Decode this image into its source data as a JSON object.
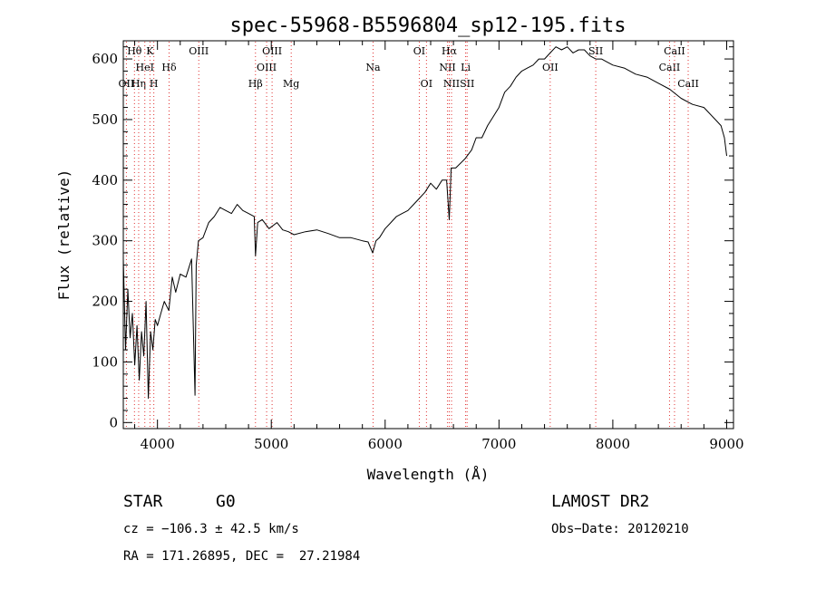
{
  "chart_data": {
    "type": "line",
    "title": "spec-55968-B5596804_sp12-195.fits",
    "xlabel": "Wavelength (Å)",
    "ylabel": "Flux (relative)",
    "xlim": [
      3700,
      9060
    ],
    "ylim": [
      -10,
      630
    ],
    "xticks": [
      4000,
      5000,
      6000,
      7000,
      8000,
      9000
    ],
    "yticks": [
      0,
      100,
      200,
      300,
      400,
      500,
      600
    ],
    "grid": false,
    "series": [
      {
        "color": "#000000",
        "x": [
          3700,
          3720,
          3740,
          3760,
          3780,
          3800,
          3820,
          3840,
          3860,
          3880,
          3900,
          3920,
          3940,
          3960,
          3980,
          4000,
          4030,
          4060,
          4100,
          4130,
          4160,
          4200,
          4250,
          4300,
          4330,
          4340,
          4360,
          4400,
          4450,
          4500,
          4550,
          4600,
          4650,
          4700,
          4750,
          4800,
          4850,
          4861,
          4880,
          4920,
          4980,
          5050,
          5100,
          5150,
          5200,
          5300,
          5400,
          5500,
          5600,
          5700,
          5800,
          5850,
          5890,
          5920,
          5950,
          6000,
          6050,
          6100,
          6150,
          6200,
          6250,
          6300,
          6350,
          6400,
          6450,
          6500,
          6540,
          6563,
          6580,
          6620,
          6700,
          6760,
          6800,
          6850,
          6900,
          6950,
          7000,
          7050,
          7100,
          7150,
          7200,
          7250,
          7300,
          7350,
          7400,
          7450,
          7500,
          7550,
          7600,
          7650,
          7700,
          7750,
          7800,
          7850,
          7900,
          7950,
          8000,
          8100,
          8200,
          8300,
          8400,
          8500,
          8600,
          8700,
          8800,
          8900,
          8950,
          8980,
          9000
        ],
        "values": [
          270,
          120,
          220,
          140,
          180,
          95,
          160,
          70,
          150,
          110,
          200,
          40,
          150,
          120,
          170,
          160,
          180,
          200,
          185,
          240,
          215,
          245,
          240,
          270,
          45,
          260,
          300,
          305,
          330,
          340,
          355,
          350,
          345,
          360,
          350,
          345,
          340,
          275,
          330,
          335,
          320,
          330,
          318,
          315,
          310,
          315,
          318,
          312,
          305,
          305,
          300,
          298,
          280,
          300,
          305,
          320,
          330,
          340,
          345,
          350,
          360,
          370,
          380,
          395,
          385,
          400,
          400,
          335,
          420,
          420,
          435,
          450,
          470,
          470,
          490,
          505,
          520,
          545,
          555,
          570,
          580,
          585,
          590,
          600,
          600,
          610,
          620,
          615,
          620,
          610,
          615,
          615,
          605,
          600,
          600,
          595,
          590,
          585,
          575,
          570,
          560,
          550,
          535,
          525,
          520,
          500,
          490,
          470,
          440
        ]
      }
    ],
    "lines": [
      {
        "label": "OII",
        "wl": 3727,
        "row": 3
      },
      {
        "label": "Hθ",
        "wl": 3798,
        "row": 1
      },
      {
        "label": "Hη",
        "wl": 3835,
        "row": 3
      },
      {
        "label": "HeI",
        "wl": 3889,
        "row": 2
      },
      {
        "label": "K",
        "wl": 3934,
        "row": 1
      },
      {
        "label": "H",
        "wl": 3968,
        "row": 3
      },
      {
        "label": "Hδ",
        "wl": 4102,
        "row": 2
      },
      {
        "label": "OIII",
        "wl": 4363,
        "row": 1
      },
      {
        "label": "Hβ",
        "wl": 4861,
        "row": 3
      },
      {
        "label": "OIII",
        "wl": 4959,
        "row": 2
      },
      {
        "label": "OIII",
        "wl": 5007,
        "row": 1
      },
      {
        "label": "Mg",
        "wl": 5175,
        "row": 3
      },
      {
        "label": "Na",
        "wl": 5894,
        "row": 2
      },
      {
        "label": "OI",
        "wl": 6300,
        "row": 1
      },
      {
        "label": "OI",
        "wl": 6363,
        "row": 3
      },
      {
        "label": "NII",
        "wl": 6548,
        "row": 2
      },
      {
        "label": "Hα",
        "wl": 6563,
        "row": 1
      },
      {
        "label": "NII",
        "wl": 6583,
        "row": 3
      },
      {
        "label": "Li",
        "wl": 6707,
        "row": 2
      },
      {
        "label": "SII",
        "wl": 6720,
        "row": 3
      },
      {
        "label": "OII",
        "wl": 7450,
        "row": 2
      },
      {
        "label": "SII",
        "wl": 7850,
        "row": 1
      },
      {
        "label": "CaII",
        "wl": 8498,
        "row": 2
      },
      {
        "label": "CaII",
        "wl": 8542,
        "row": 1
      },
      {
        "label": "CaII",
        "wl": 8662,
        "row": 3
      }
    ]
  },
  "info": {
    "object_class": "STAR",
    "subclass": "G0",
    "survey": "LAMOST DR2",
    "cz": "cz = −106.3 ± 42.5 km/s",
    "obs_date": "Obs−Date: 20120210",
    "radec": "RA = 171.26895, DEC =  27.21984"
  }
}
